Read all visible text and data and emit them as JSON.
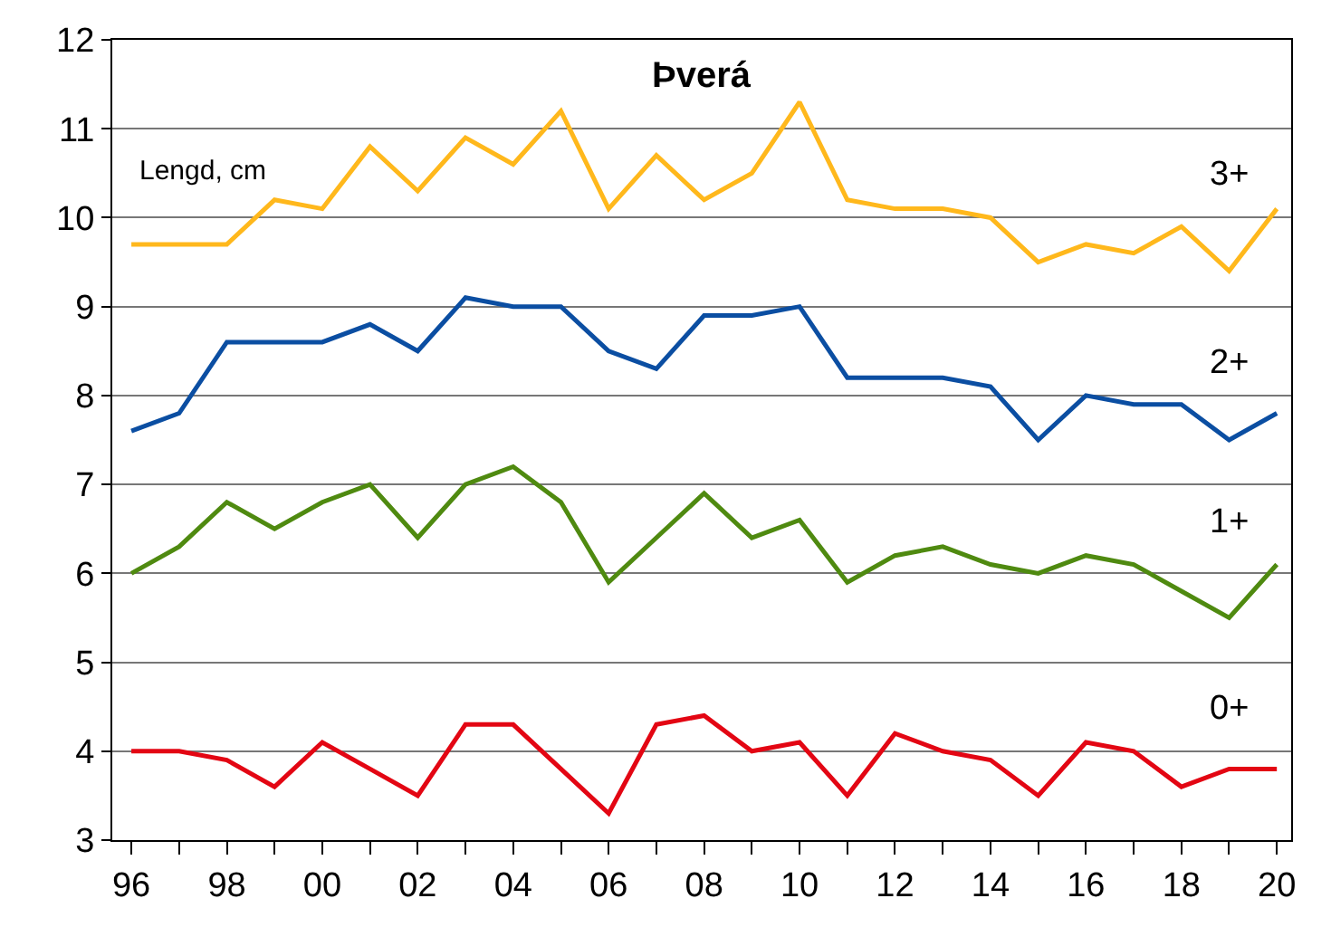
{
  "chart_data": {
    "type": "line",
    "title": "Þverá",
    "annotations": [
      "Lengd, cm"
    ],
    "x": [
      1996,
      1997,
      1998,
      1999,
      2000,
      2001,
      2002,
      2003,
      2004,
      2005,
      2006,
      2007,
      2008,
      2009,
      2010,
      2011,
      2012,
      2013,
      2014,
      2015,
      2016,
      2017,
      2018,
      2019,
      2020
    ],
    "series": [
      {
        "name": "3+",
        "color": "#ffb81c",
        "values": [
          9.7,
          9.7,
          9.7,
          10.2,
          10.1,
          10.8,
          10.3,
          10.9,
          10.6,
          11.2,
          10.1,
          10.7,
          10.2,
          10.5,
          11.3,
          10.2,
          10.1,
          10.1,
          10.0,
          9.5,
          9.7,
          9.6,
          9.9,
          9.4,
          10.1
        ]
      },
      {
        "name": "2+",
        "color": "#0b4ea2",
        "values": [
          7.6,
          7.8,
          8.6,
          8.6,
          8.6,
          8.8,
          8.5,
          9.1,
          9.0,
          9.0,
          8.5,
          8.3,
          8.9,
          8.9,
          9.0,
          8.2,
          8.2,
          8.2,
          8.1,
          7.5,
          8.0,
          7.9,
          7.9,
          7.5,
          7.8
        ]
      },
      {
        "name": "1+",
        "color": "#4f8a10",
        "values": [
          6.0,
          6.3,
          6.8,
          6.5,
          6.8,
          7.0,
          6.4,
          7.0,
          7.2,
          6.8,
          5.9,
          6.4,
          6.9,
          6.4,
          6.6,
          5.9,
          6.2,
          6.3,
          6.1,
          6.0,
          6.2,
          6.1,
          5.8,
          5.5,
          6.1
        ]
      },
      {
        "name": "0+",
        "color": "#e30613",
        "values": [
          4.0,
          4.0,
          3.9,
          3.6,
          4.1,
          3.8,
          3.5,
          4.3,
          4.3,
          3.8,
          3.3,
          4.3,
          4.4,
          4.0,
          4.1,
          3.5,
          4.2,
          4.0,
          3.9,
          3.5,
          4.1,
          4.0,
          3.6,
          3.8,
          3.8
        ]
      }
    ],
    "xlim": [
      1995.6,
      2020.3
    ],
    "xticks": [
      {
        "value": 1996,
        "label": "96"
      },
      {
        "value": 1997,
        "label": null
      },
      {
        "value": 1998,
        "label": "98"
      },
      {
        "value": 1999,
        "label": null
      },
      {
        "value": 2000,
        "label": "00"
      },
      {
        "value": 2001,
        "label": null
      },
      {
        "value": 2002,
        "label": "02"
      },
      {
        "value": 2003,
        "label": null
      },
      {
        "value": 2004,
        "label": "04"
      },
      {
        "value": 2005,
        "label": null
      },
      {
        "value": 2006,
        "label": "06"
      },
      {
        "value": 2007,
        "label": null
      },
      {
        "value": 2008,
        "label": "08"
      },
      {
        "value": 2009,
        "label": null
      },
      {
        "value": 2010,
        "label": "10"
      },
      {
        "value": 2011,
        "label": null
      },
      {
        "value": 2012,
        "label": "12"
      },
      {
        "value": 2013,
        "label": null
      },
      {
        "value": 2014,
        "label": "14"
      },
      {
        "value": 2015,
        "label": null
      },
      {
        "value": 2016,
        "label": "16"
      },
      {
        "value": 2017,
        "label": null
      },
      {
        "value": 2018,
        "label": "18"
      },
      {
        "value": 2019,
        "label": null
      },
      {
        "value": 2020,
        "label": "20"
      }
    ],
    "ylim": [
      3,
      12
    ],
    "yticks": [
      3,
      4,
      5,
      6,
      7,
      8,
      9,
      10,
      11,
      12
    ],
    "grid": "y",
    "legend": false,
    "marker": "none",
    "line_style": "solid"
  }
}
